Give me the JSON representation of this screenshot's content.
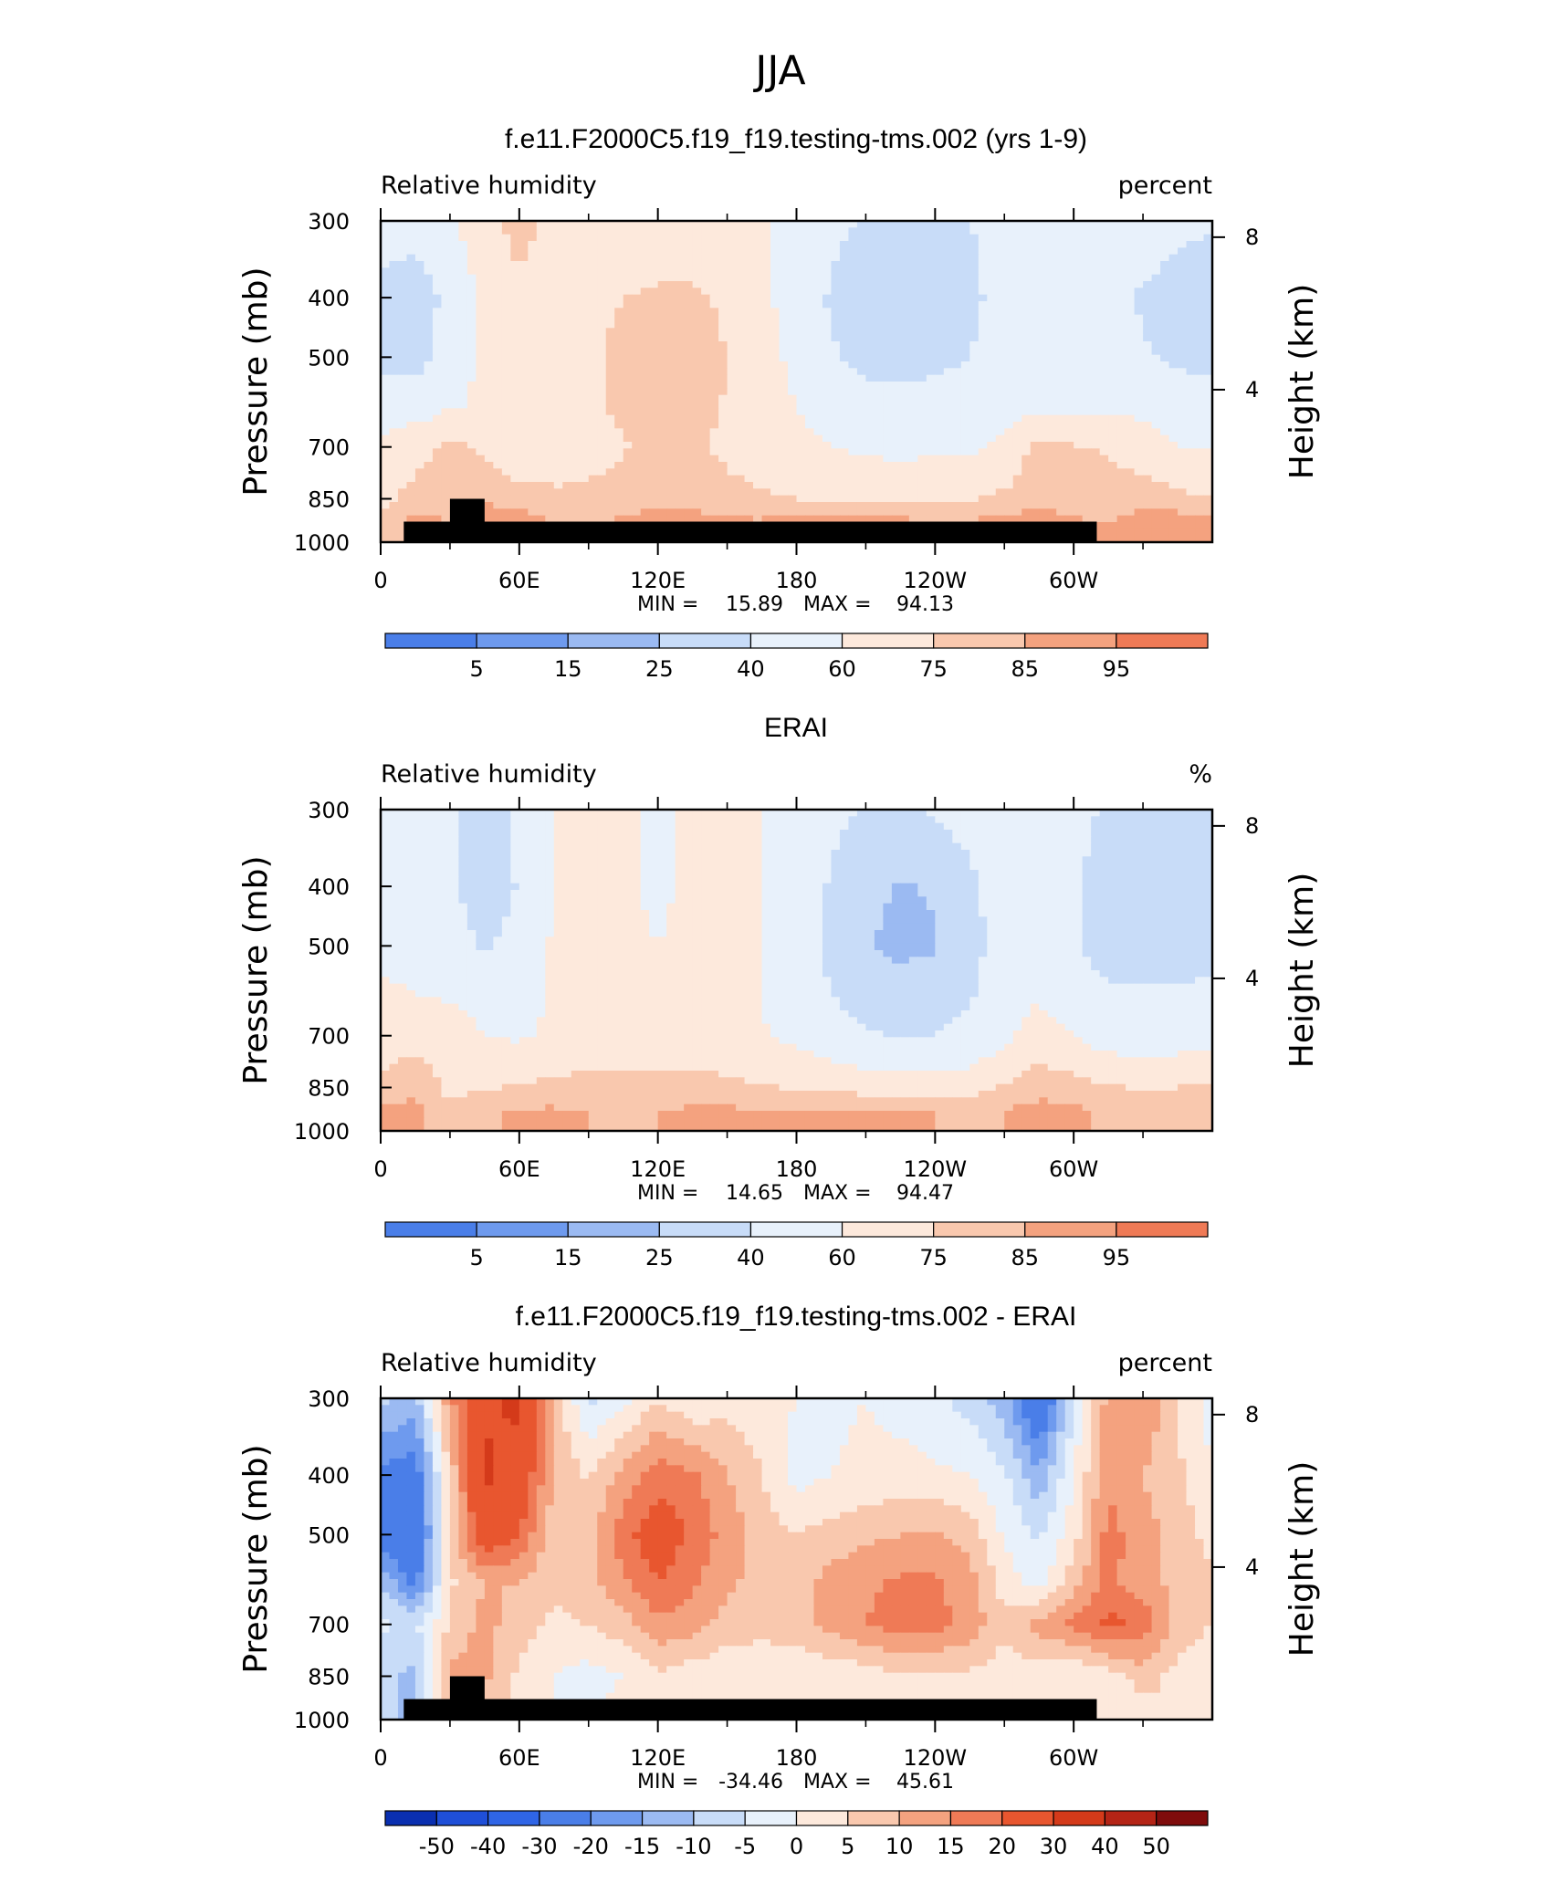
{
  "figure_title": "JJA",
  "chart_data": [
    {
      "type": "contour",
      "title": "f.e11.F2000C5.f19_f19.testing-tms.002 (yrs 1-9)",
      "variable": "Relative humidity",
      "units": "percent",
      "ylabel": "Pressure (mb)",
      "ylabel_right": "Height (km)",
      "x_ticks": [
        "0",
        "60E",
        "120E",
        "180",
        "120W",
        "60W"
      ],
      "x_range": [
        0,
        360
      ],
      "y_ticks": [
        300,
        400,
        500,
        700,
        850,
        1000
      ],
      "y_range": [
        1000,
        300
      ],
      "y_scale": "log",
      "height_ticks": [
        4,
        8
      ],
      "min_label": "MIN =",
      "min": "15.89",
      "max_label": "MAX =",
      "max": "94.13",
      "colorbar_ticks": [
        "5",
        "15",
        "25",
        "40",
        "60",
        "75",
        "85",
        "95"
      ],
      "colors": [
        "#00008b",
        "#0a2fb0",
        "#1f4fd8",
        "#2f65e6",
        "#4a7ee8",
        "#6e9aee",
        "#9bbaf2",
        "#c8dcf8",
        "#e8f1fb",
        "#fde9dc",
        "#f9c8ae",
        "#f4a27f",
        "#ef7a56",
        "#e8562f",
        "#d43a1a",
        "#b42416",
        "#7f0c0c"
      ],
      "field": {
        "lons": [
          0,
          15,
          30,
          45,
          60,
          75,
          90,
          105,
          120,
          135,
          150,
          165,
          180,
          195,
          210,
          225,
          240,
          255,
          270,
          285,
          300,
          315,
          330,
          345,
          360
        ],
        "pressures": [
          300,
          400,
          500,
          600,
          700,
          850,
          925,
          1000
        ],
        "values": [
          [
            55,
            48,
            58,
            70,
            80,
            70,
            62,
            60,
            62,
            62,
            65,
            62,
            55,
            45,
            38,
            36,
            38,
            40,
            45,
            48,
            45,
            50,
            50,
            45,
            42
          ],
          [
            30,
            30,
            45,
            65,
            72,
            70,
            70,
            75,
            78,
            78,
            72,
            65,
            50,
            38,
            28,
            25,
            27,
            35,
            48,
            42,
            42,
            46,
            38,
            32,
            28
          ],
          [
            30,
            32,
            50,
            65,
            68,
            68,
            72,
            80,
            84,
            82,
            75,
            68,
            55,
            42,
            35,
            32,
            35,
            40,
            50,
            48,
            45,
            50,
            42,
            36,
            33
          ],
          [
            55,
            52,
            58,
            62,
            65,
            68,
            72,
            78,
            82,
            80,
            74,
            68,
            60,
            52,
            47,
            46,
            48,
            50,
            55,
            56,
            55,
            58,
            55,
            52,
            52
          ],
          [
            62,
            70,
            78,
            72,
            65,
            66,
            70,
            74,
            80,
            78,
            72,
            68,
            64,
            60,
            57,
            56,
            57,
            58,
            62,
            80,
            76,
            74,
            68,
            60,
            60
          ],
          [
            70,
            80,
            82,
            85,
            80,
            78,
            78,
            80,
            84,
            82,
            79,
            77,
            75,
            73,
            72,
            72,
            72,
            74,
            78,
            84,
            80,
            78,
            82,
            78,
            75
          ],
          [
            78,
            88,
            85,
            88,
            90,
            85,
            84,
            86,
            88,
            88,
            86,
            86,
            87,
            87,
            87,
            87,
            86,
            86,
            87,
            88,
            86,
            85,
            88,
            90,
            87
          ],
          [
            80,
            88,
            86,
            88,
            90,
            86,
            84,
            87,
            88,
            88,
            86,
            86,
            87,
            87,
            87,
            87,
            86,
            86,
            87,
            88,
            86,
            85,
            88,
            90,
            87
          ]
        ]
      },
      "terrain": [
        [
          10,
          1000,
          926
        ],
        [
          30,
          926,
          850
        ],
        [
          45,
          1000,
          926
        ],
        [
          100,
          926,
          926
        ],
        [
          108,
          1000,
          926
        ],
        [
          112,
          926,
          926
        ],
        [
          117,
          1000,
          926
        ],
        [
          123,
          926,
          926
        ],
        [
          126,
          1000,
          926
        ],
        [
          282,
          926,
          926
        ],
        [
          310,
          1000,
          926
        ]
      ]
    },
    {
      "type": "contour",
      "title": "ERAI",
      "variable": "Relative humidity",
      "units": "%",
      "ylabel": "Pressure (mb)",
      "ylabel_right": "Height (km)",
      "x_ticks": [
        "0",
        "60E",
        "120E",
        "180",
        "120W",
        "60W"
      ],
      "x_range": [
        0,
        360
      ],
      "y_ticks": [
        300,
        400,
        500,
        700,
        850,
        1000
      ],
      "y_range": [
        1000,
        300
      ],
      "y_scale": "log",
      "height_ticks": [
        4,
        8
      ],
      "min_label": "MIN =",
      "min": "14.65",
      "max_label": "MAX =",
      "max": "94.47",
      "colorbar_ticks": [
        "5",
        "15",
        "25",
        "40",
        "60",
        "75",
        "85",
        "95"
      ],
      "colors": [
        "#00008b",
        "#0a2fb0",
        "#1f4fd8",
        "#2f65e6",
        "#4a7ee8",
        "#6e9aee",
        "#9bbaf2",
        "#c8dcf8",
        "#e8f1fb",
        "#fde9dc",
        "#f9c8ae",
        "#f4a27f",
        "#ef7a56",
        "#e8562f",
        "#d43a1a",
        "#b42416",
        "#7f0c0c"
      ],
      "field": {
        "lons": [
          0,
          15,
          30,
          45,
          60,
          75,
          90,
          105,
          120,
          135,
          150,
          165,
          180,
          195,
          210,
          225,
          240,
          255,
          270,
          285,
          300,
          315,
          330,
          345,
          360
        ],
        "pressures": [
          300,
          400,
          500,
          600,
          700,
          850,
          925,
          1000
        ],
        "values": [
          [
            48,
            45,
            42,
            30,
            45,
            60,
            68,
            62,
            58,
            62,
            62,
            60,
            55,
            45,
            38,
            38,
            42,
            48,
            58,
            55,
            45,
            38,
            35,
            38,
            40
          ],
          [
            52,
            48,
            45,
            25,
            42,
            60,
            65,
            62,
            58,
            62,
            62,
            60,
            52,
            38,
            28,
            24,
            26,
            35,
            52,
            55,
            42,
            32,
            28,
            25,
            28
          ],
          [
            58,
            55,
            50,
            38,
            48,
            62,
            64,
            62,
            60,
            63,
            62,
            60,
            50,
            35,
            26,
            22,
            24,
            32,
            50,
            55,
            42,
            33,
            30,
            28,
            30
          ],
          [
            62,
            60,
            58,
            52,
            55,
            62,
            64,
            64,
            62,
            64,
            63,
            60,
            52,
            40,
            33,
            30,
            32,
            38,
            52,
            58,
            48,
            42,
            42,
            44,
            45
          ],
          [
            66,
            72,
            70,
            60,
            58,
            62,
            65,
            66,
            66,
            66,
            64,
            61,
            56,
            48,
            42,
            38,
            40,
            45,
            56,
            68,
            60,
            52,
            50,
            52,
            55
          ],
          [
            80,
            82,
            72,
            74,
            76,
            78,
            80,
            80,
            80,
            80,
            78,
            76,
            74,
            72,
            70,
            68,
            68,
            70,
            76,
            82,
            80,
            76,
            74,
            75,
            76
          ],
          [
            86,
            88,
            76,
            84,
            86,
            86,
            85,
            84,
            85,
            86,
            86,
            86,
            86,
            86,
            86,
            86,
            85,
            84,
            85,
            88,
            86,
            84,
            84,
            85,
            84
          ],
          [
            86,
            88,
            76,
            84,
            86,
            86,
            85,
            84,
            85,
            86,
            86,
            86,
            86,
            86,
            86,
            86,
            85,
            84,
            85,
            88,
            86,
            84,
            84,
            85,
            84
          ]
        ]
      }
    },
    {
      "type": "contour",
      "title": "f.e11.F2000C5.f19_f19.testing-tms.002 - ERAI",
      "variable": "Relative humidity",
      "units": "percent",
      "ylabel": "Pressure (mb)",
      "ylabel_right": "Height (km)",
      "x_ticks": [
        "0",
        "60E",
        "120E",
        "180",
        "120W",
        "60W"
      ],
      "x_range": [
        0,
        360
      ],
      "y_ticks": [
        300,
        400,
        500,
        700,
        850,
        1000
      ],
      "y_range": [
        1000,
        300
      ],
      "y_scale": "log",
      "height_ticks": [
        4,
        8
      ],
      "min_label": "MIN =",
      "min": "-34.46",
      "max_label": "MAX =",
      "max": "45.61",
      "colorbar_ticks": [
        "-50",
        "-40",
        "-30",
        "-20",
        "-15",
        "-10",
        "-5",
        "0",
        "5",
        "10",
        "15",
        "20",
        "30",
        "40",
        "50"
      ],
      "colors": [
        "#00008b",
        "#0a2fb0",
        "#1f4fd8",
        "#2f65e6",
        "#4a7ee8",
        "#6e9aee",
        "#9bbaf2",
        "#c8dcf8",
        "#e8f1fb",
        "#fde9dc",
        "#f9c8ae",
        "#f4a27f",
        "#ef7a56",
        "#e8562f",
        "#d43a1a",
        "#b42416",
        "#7f0c0c"
      ],
      "field": {
        "lons": [
          0,
          15,
          30,
          45,
          60,
          75,
          90,
          105,
          120,
          135,
          150,
          165,
          180,
          195,
          210,
          225,
          240,
          255,
          270,
          285,
          300,
          315,
          330,
          345,
          360
        ],
        "pressures": [
          300,
          400,
          500,
          600,
          700,
          850,
          925,
          1000
        ],
        "values": [
          [
            -8,
            -12,
            14,
            28,
            32,
            8,
            -6,
            -2,
            5,
            0,
            3,
            2,
            0,
            -1,
            0,
            -2,
            -4,
            -7,
            -13,
            -30,
            -5,
            12,
            15,
            5,
            -2
          ],
          [
            -22,
            -24,
            6,
            32,
            26,
            10,
            4,
            12,
            18,
            16,
            10,
            5,
            -2,
            0,
            1,
            2,
            1,
            0,
            -4,
            -14,
            0,
            14,
            10,
            6,
            0
          ],
          [
            -26,
            -28,
            6,
            26,
            20,
            6,
            8,
            18,
            24,
            19,
            13,
            8,
            5,
            7,
            9,
            10,
            11,
            8,
            -1,
            -6,
            3,
            17,
            12,
            8,
            3
          ],
          [
            -10,
            -22,
            4,
            10,
            10,
            6,
            8,
            14,
            20,
            16,
            11,
            8,
            8,
            12,
            14,
            16,
            16,
            12,
            3,
            -2,
            8,
            16,
            13,
            8,
            6
          ],
          [
            -4,
            -6,
            6,
            12,
            7,
            4,
            5,
            8,
            14,
            12,
            8,
            7,
            8,
            12,
            15,
            18,
            17,
            13,
            6,
            12,
            16,
            22,
            18,
            8,
            5
          ],
          [
            -8,
            -12,
            12,
            11,
            4,
            0,
            -2,
            0,
            4,
            2,
            1,
            1,
            1,
            1,
            2,
            4,
            4,
            4,
            2,
            2,
            0,
            2,
            8,
            3,
            1
          ],
          [
            -8,
            -12,
            12,
            8,
            4,
            0,
            -2,
            2,
            3,
            2,
            0,
            0,
            1,
            1,
            1,
            1,
            1,
            2,
            2,
            0,
            0,
            1,
            4,
            5,
            3
          ],
          [
            -8,
            -12,
            12,
            8,
            4,
            0,
            -2,
            2,
            3,
            2,
            0,
            0,
            1,
            1,
            1,
            1,
            1,
            2,
            2,
            0,
            0,
            1,
            4,
            5,
            3
          ]
        ]
      },
      "terrain": [
        [
          10,
          1000,
          926
        ],
        [
          30,
          926,
          850
        ],
        [
          45,
          1000,
          926
        ],
        [
          100,
          926,
          926
        ],
        [
          108,
          1000,
          926
        ],
        [
          112,
          926,
          926
        ],
        [
          117,
          1000,
          926
        ],
        [
          123,
          926,
          926
        ],
        [
          126,
          1000,
          926
        ],
        [
          282,
          926,
          926
        ],
        [
          310,
          1000,
          926
        ]
      ]
    }
  ]
}
